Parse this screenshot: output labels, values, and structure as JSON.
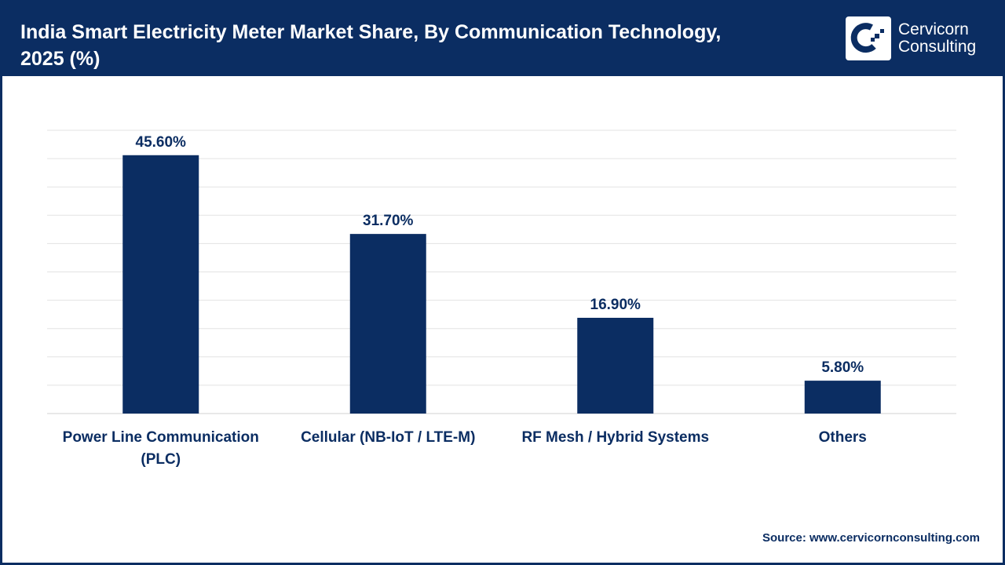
{
  "header": {
    "title": "India Smart Electricity Meter Market Share, By Communication Technology, 2025 (%)",
    "logo_line1": "Cervicorn",
    "logo_line2": "Consulting"
  },
  "source": "Source: www.cervicornconsulting.com",
  "colors": {
    "bar": "#0b2d62",
    "header": "#0b2d62",
    "grid": "#e3e3e3"
  },
  "chart_data": {
    "type": "bar",
    "title": "India Smart Electricity Meter Market Share, By Communication Technology, 2025 (%)",
    "categories": [
      [
        "Power Line Communication",
        "(PLC)"
      ],
      [
        "Cellular (NB-IoT / LTE-M)"
      ],
      [
        "RF Mesh / Hybrid Systems"
      ],
      [
        "Others"
      ]
    ],
    "values": [
      45.6,
      31.7,
      16.9,
      5.8
    ],
    "data_labels": [
      "45.60%",
      "31.70%",
      "16.90%",
      "5.80%"
    ],
    "xlabel": "",
    "ylabel": "",
    "ylim": [
      0,
      50
    ],
    "grid_step": 5,
    "grid": true,
    "y_tick_labels_shown": false
  }
}
